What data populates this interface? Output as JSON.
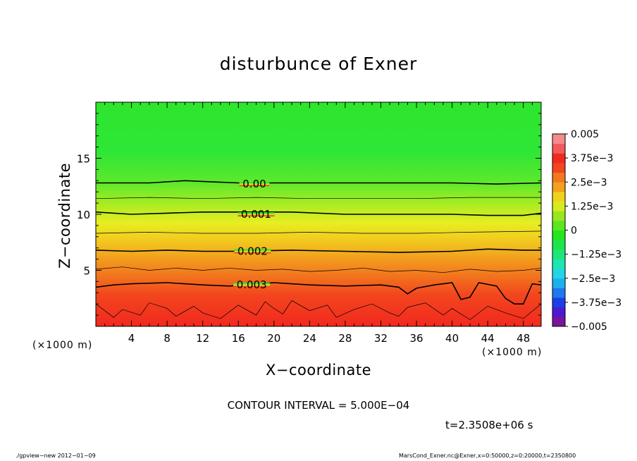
{
  "chart_data": {
    "type": "heatmap",
    "title": "disturbunce of Exner",
    "xlabel": "X−coordinate",
    "ylabel": "Z−coordinate",
    "x_unit_left": "(×1000 m)",
    "x_unit_right": "(×1000 m)",
    "xlim": [
      0,
      50
    ],
    "ylim": [
      0,
      20
    ],
    "xticks": [
      4,
      8,
      12,
      16,
      20,
      24,
      28,
      32,
      36,
      40,
      44,
      48
    ],
    "yticks": [
      5,
      10,
      15
    ],
    "colorbar": {
      "ticks": [
        "0.005",
        "3.75e−3",
        "2.5e−3",
        "1.25e−3",
        "0",
        "−1.25e−3",
        "−2.5e−3",
        "−3.75e−3",
        "−0.005"
      ],
      "colors": [
        "#7a149a",
        "#4b1ad0",
        "#1c3ee6",
        "#1e78ee",
        "#1eb0ee",
        "#22d6e6",
        "#1ee6b0",
        "#1ee67a",
        "#1ee64a",
        "#22e61e",
        "#5ce61e",
        "#9ae61e",
        "#d6ec1e",
        "#f0d21e",
        "#f2a01e",
        "#f2781e",
        "#f2461e",
        "#f22a1e",
        "#f25a5a",
        "#f58a8a"
      ]
    },
    "contour_labels": [
      {
        "text": "0.00",
        "x": 17.8,
        "z": 12.7
      },
      {
        "text": "0.001",
        "x": 18.0,
        "z": 10.0
      },
      {
        "text": "0.002",
        "x": 17.6,
        "z": 6.7
      },
      {
        "text": "0.003",
        "x": 17.5,
        "z": 3.7
      }
    ],
    "major_contours": [
      {
        "level": 0.0,
        "x": [
          0,
          3,
          6,
          10,
          13,
          16,
          22,
          28,
          34,
          40,
          45,
          50
        ],
        "z": [
          12.8,
          12.8,
          12.8,
          13.0,
          12.9,
          12.8,
          12.8,
          12.8,
          12.8,
          12.8,
          12.7,
          12.8
        ]
      },
      {
        "level": 0.001,
        "x": [
          0,
          4,
          8,
          12,
          16,
          22,
          28,
          34,
          40,
          44,
          48,
          50
        ],
        "z": [
          10.2,
          10.0,
          10.1,
          10.2,
          10.2,
          10.2,
          10.0,
          10.0,
          10.0,
          9.9,
          9.9,
          10.1
        ]
      },
      {
        "level": 0.002,
        "x": [
          0,
          4,
          8,
          12,
          16,
          22,
          28,
          34,
          40,
          44,
          48,
          50
        ],
        "z": [
          6.8,
          6.7,
          6.8,
          6.7,
          6.7,
          6.8,
          6.7,
          6.6,
          6.7,
          6.9,
          6.8,
          6.8
        ]
      },
      {
        "level": 0.003,
        "x": [
          0,
          2,
          4,
          8,
          12,
          15,
          20,
          24,
          28,
          32,
          34,
          35,
          36,
          38,
          40,
          41,
          42,
          43,
          45,
          46,
          47,
          48,
          49,
          50
        ],
        "z": [
          3.5,
          3.7,
          3.8,
          3.9,
          3.7,
          3.6,
          3.9,
          3.7,
          3.6,
          3.7,
          3.5,
          2.9,
          3.4,
          3.7,
          3.9,
          2.4,
          2.6,
          3.9,
          3.6,
          2.5,
          2.0,
          2.0,
          3.8,
          3.7
        ]
      }
    ],
    "minor_contours": [
      {
        "level": 0.0005,
        "x": [
          0,
          6,
          12,
          18,
          24,
          30,
          36,
          42,
          50
        ],
        "z": [
          11.4,
          11.5,
          11.4,
          11.5,
          11.4,
          11.4,
          11.4,
          11.5,
          11.5
        ]
      },
      {
        "level": 0.0015,
        "x": [
          0,
          6,
          12,
          18,
          24,
          30,
          36,
          42,
          50
        ],
        "z": [
          8.3,
          8.4,
          8.3,
          8.3,
          8.4,
          8.3,
          8.3,
          8.4,
          8.5
        ]
      },
      {
        "level": 0.0025,
        "x": [
          0,
          3,
          6,
          9,
          12,
          15,
          18,
          21,
          24,
          27,
          30,
          33,
          36,
          39,
          42,
          45,
          48,
          50
        ],
        "z": [
          5.1,
          5.3,
          5.0,
          5.2,
          5.0,
          5.2,
          5.0,
          5.1,
          4.9,
          5.0,
          5.2,
          4.9,
          5.0,
          4.8,
          5.1,
          4.9,
          5.0,
          5.2
        ]
      },
      {
        "level": 0.0035,
        "x": [
          0,
          1,
          2,
          3,
          5,
          6,
          8,
          9,
          11,
          12,
          14,
          16,
          18,
          19,
          20,
          21,
          22,
          24,
          26,
          27,
          29,
          31,
          33,
          34,
          35,
          37,
          39,
          40,
          42,
          44,
          46,
          48,
          50
        ],
        "z": [
          2.0,
          1.4,
          0.8,
          1.5,
          1.0,
          2.1,
          1.6,
          0.9,
          1.8,
          1.2,
          0.7,
          1.9,
          1.0,
          2.2,
          1.6,
          1.1,
          2.3,
          1.4,
          1.9,
          0.8,
          1.5,
          2.0,
          1.2,
          0.9,
          1.7,
          2.1,
          1.0,
          1.6,
          0.6,
          1.8,
          1.2,
          0.7,
          2.0
        ]
      }
    ]
  },
  "contour_interval": "CONTOUR INTERVAL = 5.000E−04",
  "timestamp": "t=2.3508e+06 s",
  "footer_left": "./gpview−new   2012−01−09",
  "footer_right": "MarsCond_Exner.nc@Exner,x=0:50000,z=0:20000,t=2350800"
}
